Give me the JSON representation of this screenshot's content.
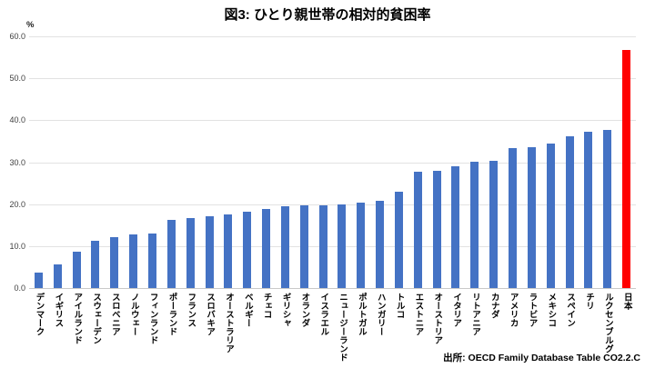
{
  "title": "図3: ひとり親世帯の相対的貧困率",
  "source": "出所: OECD Family Database Table CO2.2.C",
  "colors": {
    "bar": "#4472C4",
    "highlight": "#FF0000",
    "gridline": "#E2E2E2",
    "baseline": "#C9C9C9",
    "ytick_text": "#404040",
    "label_text": "#000000"
  },
  "chart_data": {
    "type": "bar",
    "title": "図3: ひとり親世帯の相対的貧困率",
    "xlabel": "",
    "ylabel": "%",
    "ylim": [
      0,
      60
    ],
    "ytick_interval": 10,
    "ytick_labels": [
      "0.0",
      "10.0",
      "20.0",
      "30.0",
      "40.0",
      "50.0",
      "60.0"
    ],
    "grid": true,
    "legend": "none",
    "categories": [
      "デンマーク",
      "イギリス",
      "アイルランド",
      "スウェーデン",
      "スロベニア",
      "ノルウェー",
      "フィンランド",
      "ポーランド",
      "フランス",
      "スロバキア",
      "オーストラリア",
      "ベルギー",
      "チェコ",
      "ギリシャ",
      "オランダ",
      "イスラエル",
      "ニュージーランド",
      "ポルトガル",
      "ハンガリー",
      "トルコ",
      "エストニア",
      "オーストリア",
      "イタリア",
      "リトアニア",
      "カナダ",
      "アメリカ",
      "ラトビア",
      "メキシコ",
      "スペイン",
      "チリ",
      "ルクセンブルグ",
      "日本"
    ],
    "values": [
      3.8,
      5.8,
      8.8,
      11.3,
      12.3,
      12.9,
      13.2,
      16.3,
      16.7,
      17.3,
      17.6,
      18.4,
      18.9,
      19.5,
      19.8,
      19.9,
      20.1,
      20.4,
      21.0,
      23.0,
      27.9,
      28.1,
      29.1,
      30.3,
      30.5,
      33.5,
      33.7,
      34.6,
      36.2,
      37.3,
      37.7,
      56.9
    ],
    "highlighted_category": "日本",
    "source": "出所: OECD Family Database Table CO2.2.C"
  }
}
